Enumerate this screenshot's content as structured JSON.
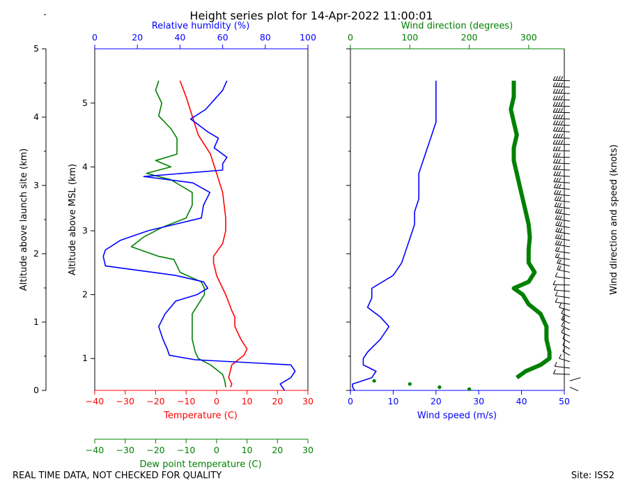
{
  "chart_data": {
    "title": "Height series plot for 14-Apr-2022 11:00:01",
    "footer_left": "REAL TIME DATA, NOT CHECKED FOR QUALITY",
    "footer_right": "Site: ISS2",
    "colors": {
      "temperature": "#ff0000",
      "dewpoint": "#008000",
      "humidity": "#0000ff",
      "wind_speed": "#0000ff",
      "wind_direction": "#008000",
      "axes": "#000000"
    },
    "launch_site_axis": {
      "label": "Altitude above launch site (km)",
      "range": [
        0,
        5
      ],
      "ticks": [
        "0",
        "1",
        "2",
        "3",
        "4",
        "5"
      ]
    },
    "left_panel": {
      "type": "line",
      "ylabel": "Altitude above MSL (km)",
      "yrange": [
        0.5,
        5.85
      ],
      "yticks": [
        "1",
        "2",
        "3",
        "4",
        "5"
      ],
      "xlabel_bottom": "Temperature (C)",
      "xrange_bottom": [
        -40,
        30
      ],
      "xticks_bottom": [
        "−40",
        "−30",
        "−20",
        "−10",
        "0",
        "10",
        "20",
        "30"
      ],
      "xlabel_dewpoint": "Dew point temperature (C)",
      "xticks_dewpoint": [
        "−40",
        "−30",
        "−20",
        "−10",
        "0",
        "10",
        "20",
        "30"
      ],
      "xlabel_top": "Relative humidity (%)",
      "xrange_top": [
        0,
        100
      ],
      "xticks_top": [
        "0",
        "20",
        "40",
        "60",
        "80",
        "100"
      ],
      "temperature": [
        [
          0.55,
          4.6
        ],
        [
          0.6,
          5
        ],
        [
          0.7,
          4
        ],
        [
          0.9,
          5
        ],
        [
          1.05,
          9
        ],
        [
          1.15,
          10
        ],
        [
          1.3,
          8
        ],
        [
          1.5,
          6
        ],
        [
          1.65,
          6
        ],
        [
          1.75,
          5
        ],
        [
          2.0,
          3
        ],
        [
          2.1,
          2
        ],
        [
          2.3,
          0
        ],
        [
          2.5,
          -1
        ],
        [
          2.6,
          -1
        ],
        [
          2.8,
          2
        ],
        [
          3.0,
          3
        ],
        [
          3.2,
          3
        ],
        [
          3.6,
          2
        ],
        [
          3.9,
          0
        ],
        [
          4.2,
          -2
        ],
        [
          4.5,
          -6
        ],
        [
          4.8,
          -8
        ],
        [
          5.1,
          -10
        ],
        [
          5.35,
          -12
        ]
      ],
      "dewpoint": [
        [
          0.55,
          3
        ],
        [
          0.65,
          2.7
        ],
        [
          0.75,
          2
        ],
        [
          0.9,
          -2
        ],
        [
          1.0,
          -6
        ],
        [
          1.1,
          -7
        ],
        [
          1.3,
          -8
        ],
        [
          1.5,
          -8
        ],
        [
          1.7,
          -8
        ],
        [
          1.85,
          -6
        ],
        [
          2.0,
          -4
        ],
        [
          2.1,
          -4
        ],
        [
          2.2,
          -5
        ],
        [
          2.35,
          -12
        ],
        [
          2.55,
          -14
        ],
        [
          2.6,
          -19
        ],
        [
          2.75,
          -28
        ],
        [
          2.9,
          -24
        ],
        [
          3.05,
          -18
        ],
        [
          3.2,
          -10
        ],
        [
          3.4,
          -8
        ],
        [
          3.6,
          -8
        ],
        [
          3.8,
          -15
        ],
        [
          3.9,
          -23
        ],
        [
          4.0,
          -15
        ],
        [
          4.1,
          -20
        ],
        [
          4.2,
          -13
        ],
        [
          4.3,
          -13
        ],
        [
          4.45,
          -13
        ],
        [
          4.6,
          -15
        ],
        [
          4.8,
          -19
        ],
        [
          5.0,
          -18
        ],
        [
          5.2,
          -20
        ],
        [
          5.35,
          -19
        ]
      ],
      "humidity": [
        [
          0.5,
          89
        ],
        [
          0.6,
          87
        ],
        [
          0.7,
          92
        ],
        [
          0.8,
          94
        ],
        [
          0.9,
          92
        ],
        [
          0.98,
          47
        ],
        [
          1.05,
          35
        ],
        [
          1.15,
          34
        ],
        [
          1.3,
          32
        ],
        [
          1.5,
          30
        ],
        [
          1.7,
          33
        ],
        [
          1.9,
          38
        ],
        [
          2.0,
          48
        ],
        [
          2.1,
          53
        ],
        [
          2.2,
          51
        ],
        [
          2.3,
          38
        ],
        [
          2.45,
          5
        ],
        [
          2.6,
          4
        ],
        [
          2.7,
          5
        ],
        [
          2.85,
          12
        ],
        [
          3.0,
          25
        ],
        [
          3.2,
          50
        ],
        [
          3.4,
          51
        ],
        [
          3.6,
          54
        ],
        [
          3.75,
          46
        ],
        [
          3.85,
          23
        ],
        [
          3.95,
          60
        ],
        [
          4.05,
          60
        ],
        [
          4.15,
          62
        ],
        [
          4.3,
          56
        ],
        [
          4.45,
          58
        ],
        [
          4.55,
          53
        ],
        [
          4.75,
          45
        ],
        [
          4.9,
          52
        ],
        [
          5.05,
          56
        ],
        [
          5.2,
          60
        ],
        [
          5.35,
          62
        ]
      ]
    },
    "right_panel": {
      "type": "line+scatter",
      "xlabel_bottom": "Wind speed (m/s)",
      "xrange_bottom": [
        0,
        50
      ],
      "xticks_bottom": [
        "0",
        "10",
        "20",
        "30",
        "40",
        "50"
      ],
      "xlabel_top": "Wind direction (degrees)",
      "xrange_top": [
        0,
        360
      ],
      "xticks_top": [
        "0",
        "100",
        "200",
        "300"
      ],
      "barb_label": "Wind direction and speed (knots)",
      "wind_speed": [
        [
          0.5,
          1
        ],
        [
          0.55,
          0.5
        ],
        [
          0.6,
          0.5
        ],
        [
          0.7,
          5
        ],
        [
          0.8,
          6
        ],
        [
          0.9,
          3
        ],
        [
          1.0,
          3
        ],
        [
          1.1,
          4
        ],
        [
          1.3,
          7
        ],
        [
          1.5,
          9
        ],
        [
          1.65,
          7
        ],
        [
          1.8,
          4
        ],
        [
          1.95,
          5
        ],
        [
          2.1,
          5
        ],
        [
          2.3,
          10
        ],
        [
          2.5,
          12
        ],
        [
          2.7,
          13
        ],
        [
          2.9,
          14
        ],
        [
          3.1,
          15
        ],
        [
          3.3,
          15
        ],
        [
          3.5,
          16
        ],
        [
          3.7,
          16
        ],
        [
          3.9,
          16
        ],
        [
          4.1,
          17
        ],
        [
          4.3,
          18
        ],
        [
          4.5,
          19
        ],
        [
          4.7,
          20
        ],
        [
          4.9,
          20
        ],
        [
          5.1,
          20
        ],
        [
          5.35,
          20
        ]
      ],
      "wind_direction": [
        [
          0.52,
          200
        ],
        [
          0.55,
          150
        ],
        [
          0.6,
          100
        ],
        [
          0.65,
          40
        ],
        [
          0.7,
          280
        ],
        [
          0.8,
          295
        ],
        [
          0.9,
          320
        ],
        [
          1.0,
          335
        ],
        [
          1.1,
          335
        ],
        [
          1.3,
          330
        ],
        [
          1.5,
          330
        ],
        [
          1.7,
          320
        ],
        [
          1.85,
          300
        ],
        [
          2.0,
          290
        ],
        [
          2.1,
          275
        ],
        [
          2.2,
          300
        ],
        [
          2.35,
          310
        ],
        [
          2.5,
          300
        ],
        [
          2.7,
          300
        ],
        [
          2.9,
          302
        ],
        [
          3.1,
          300
        ],
        [
          3.3,
          295
        ],
        [
          3.5,
          290
        ],
        [
          3.7,
          285
        ],
        [
          3.9,
          280
        ],
        [
          4.1,
          275
        ],
        [
          4.3,
          275
        ],
        [
          4.5,
          280
        ],
        [
          4.7,
          275
        ],
        [
          4.9,
          270
        ],
        [
          5.1,
          275
        ],
        [
          5.35,
          275
        ]
      ]
    }
  }
}
